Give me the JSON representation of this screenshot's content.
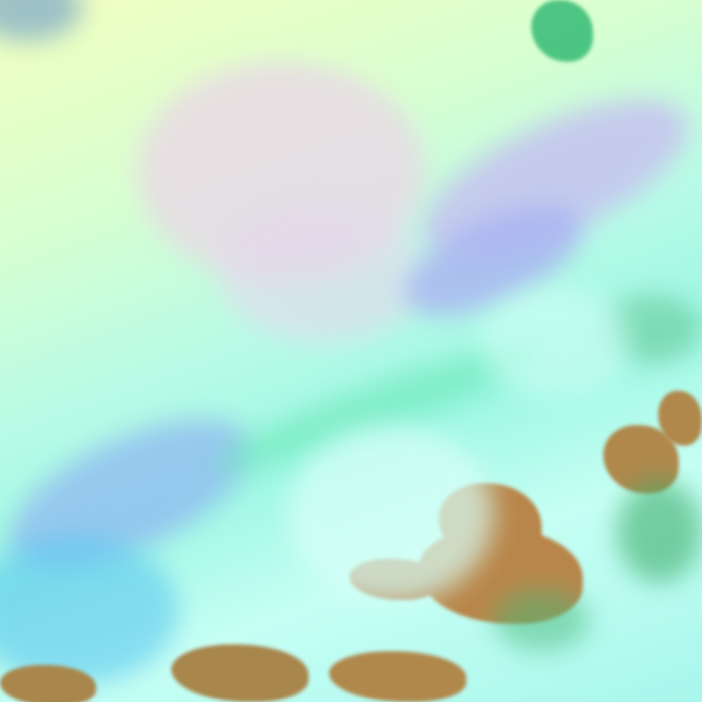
{
  "image": {
    "kind": "false-color satellite imagery",
    "colors": {
      "cloud_bright": "#c6fff4",
      "cloud_cyan": "#9ff7e4",
      "haze_yellow": "#f2ffc0",
      "haze_pink": "#e8d6e8",
      "haze_violet": "#b7b8f0",
      "land_brown": "#b8864a",
      "vegetation_green": "#3fbf7a",
      "water_blue": "#5ec8f0"
    }
  }
}
